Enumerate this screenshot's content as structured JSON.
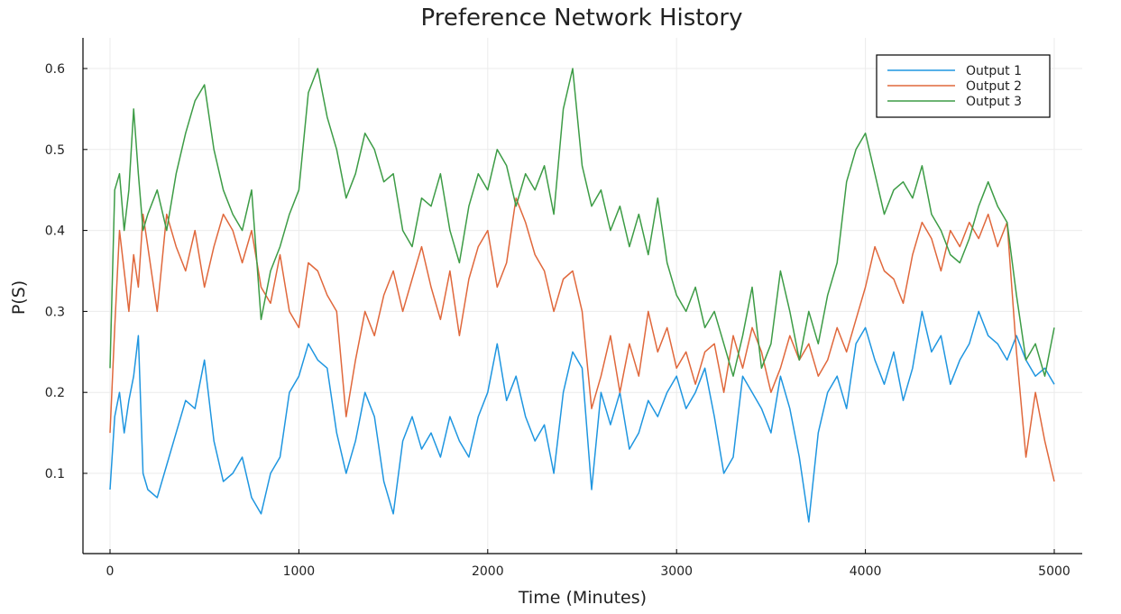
{
  "chart_data": {
    "type": "line",
    "title": "Preference Network History",
    "xlabel": "Time (Minutes)",
    "ylabel": "P(S)",
    "xlim": [
      0,
      5000
    ],
    "ylim": [
      0,
      0.63
    ],
    "xticks": [
      0,
      1000,
      2000,
      3000,
      4000,
      5000
    ],
    "yticks": [
      0.1,
      0.2,
      0.3,
      0.4,
      0.5,
      0.6
    ],
    "grid": true,
    "legend_position": "top-right",
    "series": [
      {
        "name": "Output 1",
        "color": "#1f96e0",
        "points": [
          [
            0,
            0.08
          ],
          [
            25,
            0.17
          ],
          [
            50,
            0.2
          ],
          [
            75,
            0.15
          ],
          [
            100,
            0.19
          ],
          [
            125,
            0.22
          ],
          [
            150,
            0.27
          ],
          [
            175,
            0.1
          ],
          [
            200,
            0.08
          ],
          [
            250,
            0.07
          ],
          [
            300,
            0.11
          ],
          [
            350,
            0.15
          ],
          [
            400,
            0.19
          ],
          [
            450,
            0.18
          ],
          [
            500,
            0.24
          ],
          [
            550,
            0.14
          ],
          [
            600,
            0.09
          ],
          [
            650,
            0.1
          ],
          [
            700,
            0.12
          ],
          [
            750,
            0.07
          ],
          [
            800,
            0.05
          ],
          [
            850,
            0.1
          ],
          [
            900,
            0.12
          ],
          [
            950,
            0.2
          ],
          [
            1000,
            0.22
          ],
          [
            1050,
            0.26
          ],
          [
            1100,
            0.24
          ],
          [
            1150,
            0.23
          ],
          [
            1200,
            0.15
          ],
          [
            1250,
            0.1
          ],
          [
            1300,
            0.14
          ],
          [
            1350,
            0.2
          ],
          [
            1400,
            0.17
          ],
          [
            1450,
            0.09
          ],
          [
            1500,
            0.05
          ],
          [
            1550,
            0.14
          ],
          [
            1600,
            0.17
          ],
          [
            1650,
            0.13
          ],
          [
            1700,
            0.15
          ],
          [
            1750,
            0.12
          ],
          [
            1800,
            0.17
          ],
          [
            1850,
            0.14
          ],
          [
            1900,
            0.12
          ],
          [
            1950,
            0.17
          ],
          [
            2000,
            0.2
          ],
          [
            2050,
            0.26
          ],
          [
            2100,
            0.19
          ],
          [
            2150,
            0.22
          ],
          [
            2200,
            0.17
          ],
          [
            2250,
            0.14
          ],
          [
            2300,
            0.16
          ],
          [
            2350,
            0.1
          ],
          [
            2400,
            0.2
          ],
          [
            2450,
            0.25
          ],
          [
            2500,
            0.23
          ],
          [
            2550,
            0.08
          ],
          [
            2600,
            0.2
          ],
          [
            2650,
            0.16
          ],
          [
            2700,
            0.2
          ],
          [
            2750,
            0.13
          ],
          [
            2800,
            0.15
          ],
          [
            2850,
            0.19
          ],
          [
            2900,
            0.17
          ],
          [
            2950,
            0.2
          ],
          [
            3000,
            0.22
          ],
          [
            3050,
            0.18
          ],
          [
            3100,
            0.2
          ],
          [
            3150,
            0.23
          ],
          [
            3200,
            0.17
          ],
          [
            3250,
            0.1
          ],
          [
            3300,
            0.12
          ],
          [
            3350,
            0.22
          ],
          [
            3400,
            0.2
          ],
          [
            3450,
            0.18
          ],
          [
            3500,
            0.15
          ],
          [
            3550,
            0.22
          ],
          [
            3600,
            0.18
          ],
          [
            3650,
            0.12
          ],
          [
            3700,
            0.04
          ],
          [
            3750,
            0.15
          ],
          [
            3800,
            0.2
          ],
          [
            3850,
            0.22
          ],
          [
            3900,
            0.18
          ],
          [
            3950,
            0.26
          ],
          [
            4000,
            0.28
          ],
          [
            4050,
            0.24
          ],
          [
            4100,
            0.21
          ],
          [
            4150,
            0.25
          ],
          [
            4200,
            0.19
          ],
          [
            4250,
            0.23
          ],
          [
            4300,
            0.3
          ],
          [
            4350,
            0.25
          ],
          [
            4400,
            0.27
          ],
          [
            4450,
            0.21
          ],
          [
            4500,
            0.24
          ],
          [
            4550,
            0.26
          ],
          [
            4600,
            0.3
          ],
          [
            4650,
            0.27
          ],
          [
            4700,
            0.26
          ],
          [
            4750,
            0.24
          ],
          [
            4800,
            0.27
          ],
          [
            4850,
            0.24
          ],
          [
            4900,
            0.22
          ],
          [
            4950,
            0.23
          ],
          [
            5000,
            0.21
          ]
        ]
      },
      {
        "name": "Output 2",
        "color": "#e0683c",
        "points": [
          [
            0,
            0.15
          ],
          [
            25,
            0.28
          ],
          [
            50,
            0.4
          ],
          [
            75,
            0.35
          ],
          [
            100,
            0.3
          ],
          [
            125,
            0.37
          ],
          [
            150,
            0.33
          ],
          [
            175,
            0.42
          ],
          [
            200,
            0.38
          ],
          [
            250,
            0.3
          ],
          [
            300,
            0.42
          ],
          [
            350,
            0.38
          ],
          [
            400,
            0.35
          ],
          [
            450,
            0.4
          ],
          [
            500,
            0.33
          ],
          [
            550,
            0.38
          ],
          [
            600,
            0.42
          ],
          [
            650,
            0.4
          ],
          [
            700,
            0.36
          ],
          [
            750,
            0.4
          ],
          [
            800,
            0.33
          ],
          [
            850,
            0.31
          ],
          [
            900,
            0.37
          ],
          [
            950,
            0.3
          ],
          [
            1000,
            0.28
          ],
          [
            1050,
            0.36
          ],
          [
            1100,
            0.35
          ],
          [
            1150,
            0.32
          ],
          [
            1200,
            0.3
          ],
          [
            1250,
            0.17
          ],
          [
            1300,
            0.24
          ],
          [
            1350,
            0.3
          ],
          [
            1400,
            0.27
          ],
          [
            1450,
            0.32
          ],
          [
            1500,
            0.35
          ],
          [
            1550,
            0.3
          ],
          [
            1600,
            0.34
          ],
          [
            1650,
            0.38
          ],
          [
            1700,
            0.33
          ],
          [
            1750,
            0.29
          ],
          [
            1800,
            0.35
          ],
          [
            1850,
            0.27
          ],
          [
            1900,
            0.34
          ],
          [
            1950,
            0.38
          ],
          [
            2000,
            0.4
          ],
          [
            2050,
            0.33
          ],
          [
            2100,
            0.36
          ],
          [
            2150,
            0.44
          ],
          [
            2200,
            0.41
          ],
          [
            2250,
            0.37
          ],
          [
            2300,
            0.35
          ],
          [
            2350,
            0.3
          ],
          [
            2400,
            0.34
          ],
          [
            2450,
            0.35
          ],
          [
            2500,
            0.3
          ],
          [
            2550,
            0.18
          ],
          [
            2600,
            0.22
          ],
          [
            2650,
            0.27
          ],
          [
            2700,
            0.2
          ],
          [
            2750,
            0.26
          ],
          [
            2800,
            0.22
          ],
          [
            2850,
            0.3
          ],
          [
            2900,
            0.25
          ],
          [
            2950,
            0.28
          ],
          [
            3000,
            0.23
          ],
          [
            3050,
            0.25
          ],
          [
            3100,
            0.21
          ],
          [
            3150,
            0.25
          ],
          [
            3200,
            0.26
          ],
          [
            3250,
            0.2
          ],
          [
            3300,
            0.27
          ],
          [
            3350,
            0.23
          ],
          [
            3400,
            0.28
          ],
          [
            3450,
            0.25
          ],
          [
            3500,
            0.2
          ],
          [
            3550,
            0.23
          ],
          [
            3600,
            0.27
          ],
          [
            3650,
            0.24
          ],
          [
            3700,
            0.26
          ],
          [
            3750,
            0.22
          ],
          [
            3800,
            0.24
          ],
          [
            3850,
            0.28
          ],
          [
            3900,
            0.25
          ],
          [
            3950,
            0.29
          ],
          [
            4000,
            0.33
          ],
          [
            4050,
            0.38
          ],
          [
            4100,
            0.35
          ],
          [
            4150,
            0.34
          ],
          [
            4200,
            0.31
          ],
          [
            4250,
            0.37
          ],
          [
            4300,
            0.41
          ],
          [
            4350,
            0.39
          ],
          [
            4400,
            0.35
          ],
          [
            4450,
            0.4
          ],
          [
            4500,
            0.38
          ],
          [
            4550,
            0.41
          ],
          [
            4600,
            0.39
          ],
          [
            4650,
            0.42
          ],
          [
            4700,
            0.38
          ],
          [
            4750,
            0.41
          ],
          [
            4800,
            0.25
          ],
          [
            4850,
            0.12
          ],
          [
            4900,
            0.2
          ],
          [
            4950,
            0.14
          ],
          [
            5000,
            0.09
          ]
        ]
      },
      {
        "name": "Output 3",
        "color": "#3d9c46",
        "points": [
          [
            0,
            0.23
          ],
          [
            25,
            0.45
          ],
          [
            50,
            0.47
          ],
          [
            75,
            0.4
          ],
          [
            100,
            0.45
          ],
          [
            125,
            0.55
          ],
          [
            150,
            0.47
          ],
          [
            175,
            0.4
          ],
          [
            200,
            0.42
          ],
          [
            250,
            0.45
          ],
          [
            300,
            0.4
          ],
          [
            350,
            0.47
          ],
          [
            400,
            0.52
          ],
          [
            450,
            0.56
          ],
          [
            500,
            0.58
          ],
          [
            550,
            0.5
          ],
          [
            600,
            0.45
          ],
          [
            650,
            0.42
          ],
          [
            700,
            0.4
          ],
          [
            750,
            0.45
          ],
          [
            800,
            0.29
          ],
          [
            850,
            0.35
          ],
          [
            900,
            0.38
          ],
          [
            950,
            0.42
          ],
          [
            1000,
            0.45
          ],
          [
            1050,
            0.57
          ],
          [
            1100,
            0.6
          ],
          [
            1150,
            0.54
          ],
          [
            1200,
            0.5
          ],
          [
            1250,
            0.44
          ],
          [
            1300,
            0.47
          ],
          [
            1350,
            0.52
          ],
          [
            1400,
            0.5
          ],
          [
            1450,
            0.46
          ],
          [
            1500,
            0.47
          ],
          [
            1550,
            0.4
          ],
          [
            1600,
            0.38
          ],
          [
            1650,
            0.44
          ],
          [
            1700,
            0.43
          ],
          [
            1750,
            0.47
          ],
          [
            1800,
            0.4
          ],
          [
            1850,
            0.36
          ],
          [
            1900,
            0.43
          ],
          [
            1950,
            0.47
          ],
          [
            2000,
            0.45
          ],
          [
            2050,
            0.5
          ],
          [
            2100,
            0.48
          ],
          [
            2150,
            0.43
          ],
          [
            2200,
            0.47
          ],
          [
            2250,
            0.45
          ],
          [
            2300,
            0.48
          ],
          [
            2350,
            0.42
          ],
          [
            2400,
            0.55
          ],
          [
            2450,
            0.6
          ],
          [
            2500,
            0.48
          ],
          [
            2550,
            0.43
          ],
          [
            2600,
            0.45
          ],
          [
            2650,
            0.4
          ],
          [
            2700,
            0.43
          ],
          [
            2750,
            0.38
          ],
          [
            2800,
            0.42
          ],
          [
            2850,
            0.37
          ],
          [
            2900,
            0.44
          ],
          [
            2950,
            0.36
          ],
          [
            3000,
            0.32
          ],
          [
            3050,
            0.3
          ],
          [
            3100,
            0.33
          ],
          [
            3150,
            0.28
          ],
          [
            3200,
            0.3
          ],
          [
            3250,
            0.26
          ],
          [
            3300,
            0.22
          ],
          [
            3350,
            0.27
          ],
          [
            3400,
            0.33
          ],
          [
            3450,
            0.23
          ],
          [
            3500,
            0.26
          ],
          [
            3550,
            0.35
          ],
          [
            3600,
            0.3
          ],
          [
            3650,
            0.24
          ],
          [
            3700,
            0.3
          ],
          [
            3750,
            0.26
          ],
          [
            3800,
            0.32
          ],
          [
            3850,
            0.36
          ],
          [
            3900,
            0.46
          ],
          [
            3950,
            0.5
          ],
          [
            4000,
            0.52
          ],
          [
            4050,
            0.47
          ],
          [
            4100,
            0.42
          ],
          [
            4150,
            0.45
          ],
          [
            4200,
            0.46
          ],
          [
            4250,
            0.44
          ],
          [
            4300,
            0.48
          ],
          [
            4350,
            0.42
          ],
          [
            4400,
            0.4
          ],
          [
            4450,
            0.37
          ],
          [
            4500,
            0.36
          ],
          [
            4550,
            0.39
          ],
          [
            4600,
            0.43
          ],
          [
            4650,
            0.46
          ],
          [
            4700,
            0.43
          ],
          [
            4750,
            0.41
          ],
          [
            4800,
            0.32
          ],
          [
            4850,
            0.24
          ],
          [
            4900,
            0.26
          ],
          [
            4950,
            0.22
          ],
          [
            5000,
            0.28
          ]
        ]
      }
    ]
  }
}
